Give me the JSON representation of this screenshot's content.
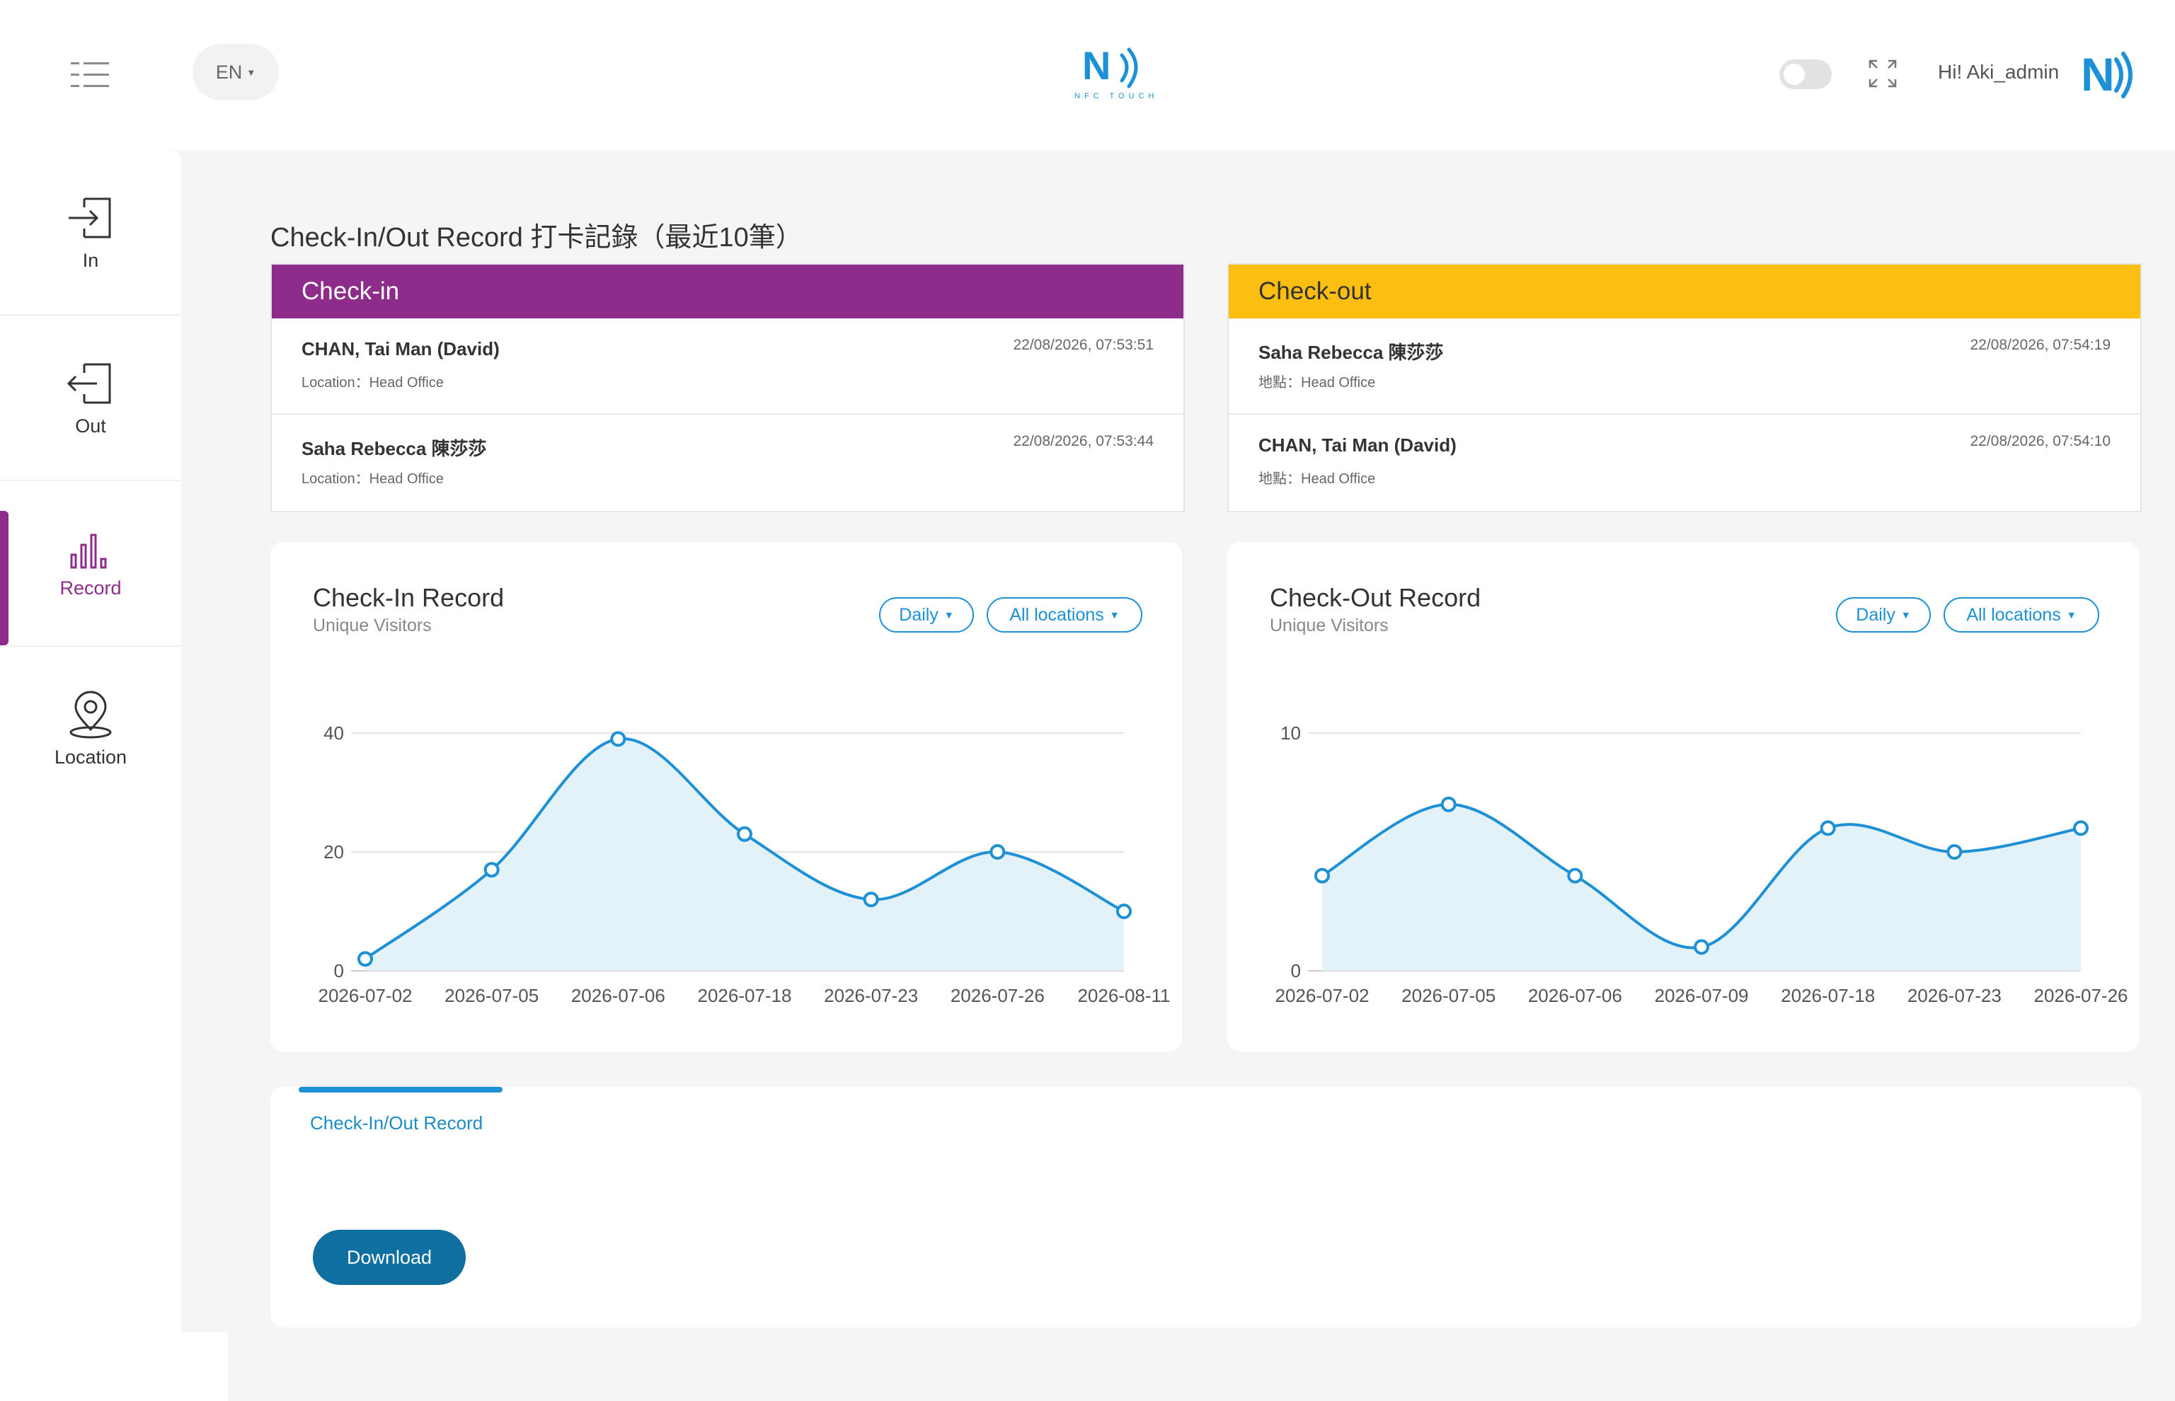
{
  "header": {
    "lang": "EN",
    "logo_text": "NFC TOUCH",
    "greeting": "Hi! Aki_admin"
  },
  "sidebar": {
    "items": [
      {
        "label": "In",
        "icon": "login-icon"
      },
      {
        "label": "Out",
        "icon": "logout-icon"
      },
      {
        "label": "Record",
        "icon": "bar-chart-icon"
      },
      {
        "label": "Location",
        "icon": "location-pin-icon"
      }
    ]
  },
  "page_title": "Check-In/Out Record 打卡記錄（最近10筆）",
  "checkin_panel": {
    "title": "Check-in",
    "records": [
      {
        "name": "CHAN, Tai Man (David)",
        "location": "Location：Head Office",
        "time": "22/08/2026, 07:53:51"
      },
      {
        "name": "Saha Rebecca 陳莎莎",
        "location": "Location：Head Office",
        "time": "22/08/2026, 07:53:44"
      }
    ]
  },
  "checkout_panel": {
    "title": "Check-out",
    "records": [
      {
        "name": "Saha Rebecca 陳莎莎",
        "location": "地點：Head Office",
        "time": "22/08/2026, 07:54:19"
      },
      {
        "name": "CHAN, Tai Man (David)",
        "location": "地點：Head Office",
        "time": "22/08/2026, 07:54:10"
      }
    ]
  },
  "checkin_chart": {
    "title": "Check-In Record",
    "subtitle": "Unique Visitors",
    "period": "Daily",
    "location": "All locations"
  },
  "checkout_chart": {
    "title": "Check-Out Record",
    "subtitle": "Unique Visitors",
    "period": "Daily",
    "location": "All locations"
  },
  "bottom": {
    "tab": "Check-In/Out Record",
    "download": "Download"
  },
  "colors": {
    "accent_purple": "#8e2c8b",
    "accent_yellow": "#fbbe11",
    "accent_blue": "#1d90d6",
    "button_blue": "#0e6fa0"
  },
  "chart_data": [
    {
      "type": "area",
      "categories": [
        "2026-07-02",
        "2026-07-05",
        "2026-07-06",
        "2026-07-18",
        "2026-07-23",
        "2026-07-26",
        "2026-08-11"
      ],
      "values": [
        2,
        17,
        39,
        23,
        12,
        20,
        10
      ],
      "ylim": [
        0,
        40
      ],
      "yticks": [
        0,
        20,
        40
      ],
      "grid": true
    },
    {
      "type": "area",
      "categories": [
        "2026-07-02",
        "2026-07-05",
        "2026-07-06",
        "2026-07-09",
        "2026-07-18",
        "2026-07-23",
        "2026-07-26"
      ],
      "values": [
        4,
        7,
        4,
        1,
        6,
        5,
        6
      ],
      "ylim": [
        0,
        10
      ],
      "yticks": [
        0,
        10
      ],
      "grid": true
    }
  ]
}
